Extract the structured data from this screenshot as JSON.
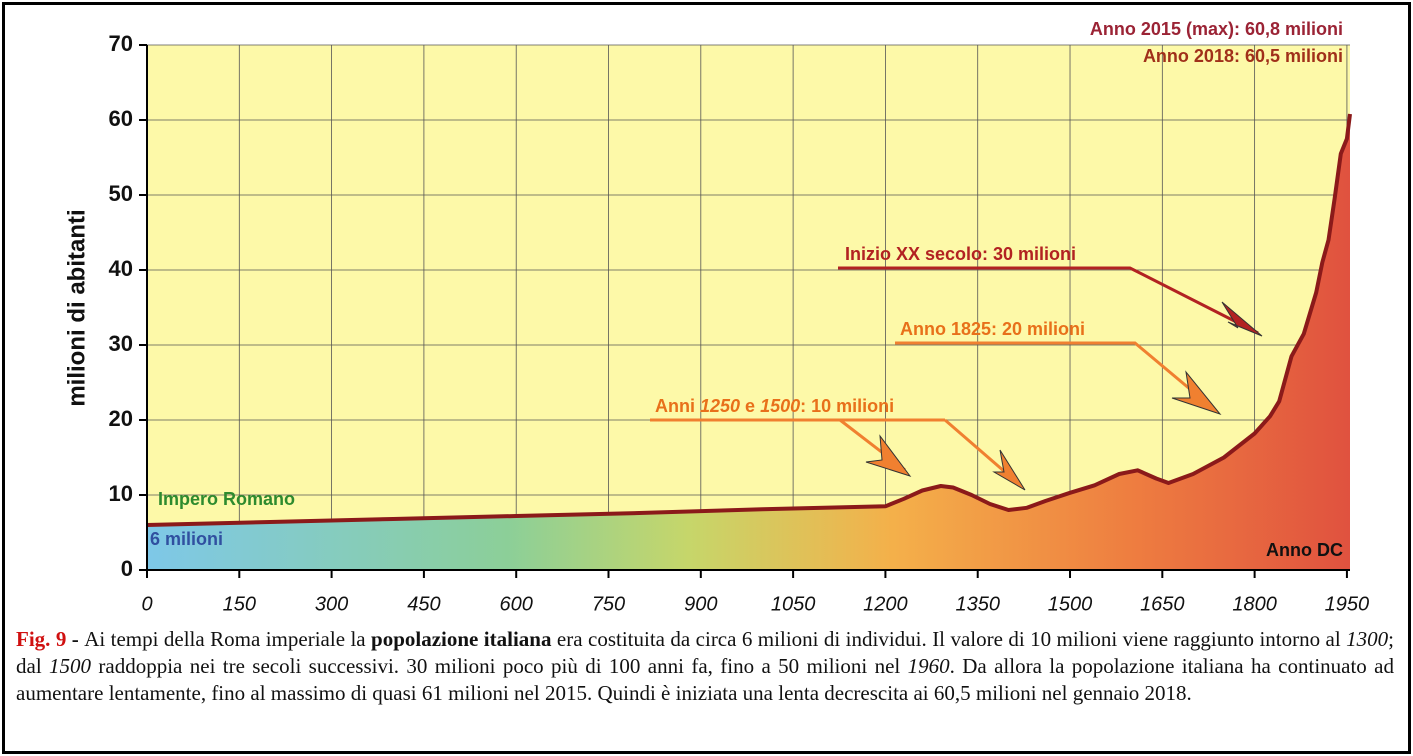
{
  "chart_data": {
    "type": "area",
    "ylabel": "milioni di abitanti",
    "x": [
      0,
      200,
      400,
      600,
      800,
      1000,
      1200,
      1230,
      1260,
      1290,
      1310,
      1340,
      1370,
      1400,
      1430,
      1460,
      1500,
      1540,
      1580,
      1610,
      1640,
      1660,
      1700,
      1750,
      1800,
      1825,
      1840,
      1860,
      1880,
      1900,
      1910,
      1920,
      1930,
      1940,
      1950,
      1955
    ],
    "series": [
      {
        "color": "#8b1a1a",
        "values": [
          6,
          6.4,
          6.8,
          7.2,
          7.6,
          8.1,
          8.5,
          9.5,
          10.6,
          11.2,
          11,
          10,
          8.8,
          8,
          8.3,
          9.2,
          10.3,
          11.3,
          12.8,
          13.3,
          12.2,
          11.6,
          12.8,
          15,
          18.2,
          20.5,
          22.5,
          28.5,
          31.5,
          37,
          41,
          44,
          49.5,
          55.5,
          57.5,
          60.8
        ]
      }
    ],
    "xlim": [
      0,
      1955
    ],
    "xticks": [
      0,
      150,
      300,
      450,
      600,
      750,
      900,
      1050,
      1200,
      1350,
      1500,
      1650,
      1800,
      1950
    ],
    "ylim": [
      0,
      70
    ],
    "yticks": [
      0,
      10,
      20,
      30,
      40,
      50,
      60,
      70
    ],
    "grid": true,
    "annotations": {
      "max2015": "Anno 2015 (max): 60,8 milioni",
      "y2018": "Anno 2018: 60,5 milioni",
      "xx": "Inizio XX secolo: 30 milioni",
      "y1825": "Anno 1825: 20 milioni",
      "y1250": [
        "Anni ",
        "1250",
        " e ",
        "1500",
        ": 10 milioni"
      ],
      "impero": "Impero Romano",
      "sei": "6 milioni",
      "dc": "Anno DC"
    }
  },
  "caption": [
    "Fig. 9",
    " - ",
    "Ai tempi della Roma imperiale la ",
    "popolazione italiana",
    " era costituita da circa 6 milioni di individui. Il valore di 10 milioni viene raggiunto intorno al ",
    "1300",
    "; dal ",
    "1500",
    " raddoppia nei tre secoli successivi. 30 milioni poco più di 100 anni fa, fino a 50 milioni nel ",
    "1960",
    ". Da allora la popolazione italiana ha continuato ad aumentare lentamente, fino al massimo di quasi 61 milioni nel 2015. Quindi è iniziata una lenta decrescita ai 60,5 milioni nel gennaio 2018."
  ]
}
